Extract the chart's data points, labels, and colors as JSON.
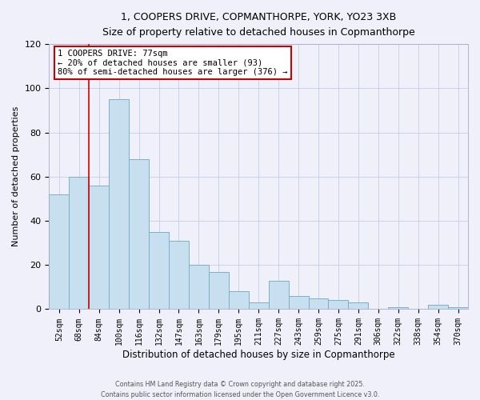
{
  "title1": "1, COOPERS DRIVE, COPMANTHORPE, YORK, YO23 3XB",
  "title2": "Size of property relative to detached houses in Copmanthorpe",
  "xlabel": "Distribution of detached houses by size in Copmanthorpe",
  "ylabel": "Number of detached properties",
  "bar_color": "#c8dff0",
  "bar_edge_color": "#7aafc8",
  "categories": [
    "52sqm",
    "68sqm",
    "84sqm",
    "100sqm",
    "116sqm",
    "132sqm",
    "147sqm",
    "163sqm",
    "179sqm",
    "195sqm",
    "211sqm",
    "227sqm",
    "243sqm",
    "259sqm",
    "275sqm",
    "291sqm",
    "306sqm",
    "322sqm",
    "338sqm",
    "354sqm",
    "370sqm"
  ],
  "values": [
    52,
    60,
    56,
    95,
    68,
    35,
    31,
    20,
    17,
    8,
    3,
    13,
    6,
    5,
    4,
    3,
    0,
    1,
    0,
    2,
    1
  ],
  "ylim": [
    0,
    120
  ],
  "yticks": [
    0,
    20,
    40,
    60,
    80,
    100,
    120
  ],
  "vline_color": "#cc0000",
  "annotation_title": "1 COOPERS DRIVE: 77sqm",
  "annotation_line1": "← 20% of detached houses are smaller (93)",
  "annotation_line2": "80% of semi-detached houses are larger (376) →",
  "annotation_box_color": "#ffffff",
  "annotation_box_edge_color": "#cc0000",
  "footer1": "Contains HM Land Registry data © Crown copyright and database right 2025.",
  "footer2": "Contains public sector information licensed under the Open Government Licence v3.0.",
  "background_color": "#f0f0fa",
  "grid_color": "#c8d4e8"
}
